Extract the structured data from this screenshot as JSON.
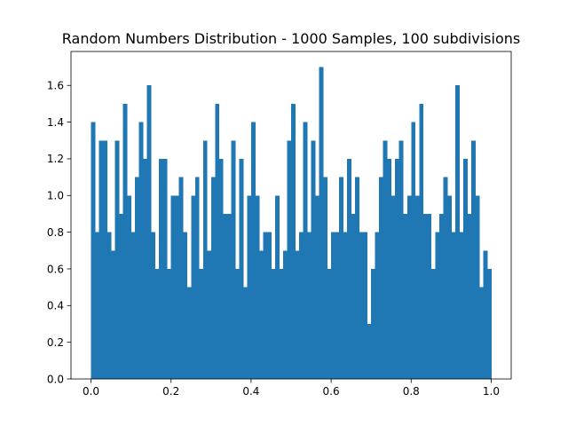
{
  "chart_data": {
    "type": "bar",
    "title": "Random Numbers Distribution - 1000 Samples, 100 subdivisions",
    "xlabel": "",
    "ylabel": "",
    "bin_range": [
      0,
      1
    ],
    "bin_count": 100,
    "xlim": [
      -0.05,
      1.05
    ],
    "ylim": [
      0,
      1.785
    ],
    "x_ticks": [
      0.0,
      0.2,
      0.4,
      0.6,
      0.8,
      1.0
    ],
    "x_tick_labels": [
      "0.0",
      "0.2",
      "0.4",
      "0.6",
      "0.8",
      "1.0"
    ],
    "y_ticks": [
      0.0,
      0.2,
      0.4,
      0.6,
      0.8,
      1.0,
      1.2,
      1.4,
      1.6
    ],
    "y_tick_labels": [
      "0.0",
      "0.2",
      "0.4",
      "0.6",
      "0.8",
      "1.0",
      "1.2",
      "1.4",
      "1.6"
    ],
    "bar_color": "#1f77b4",
    "grid": false,
    "values": [
      1.4,
      0.8,
      1.3,
      1.3,
      0.8,
      0.7,
      1.3,
      0.9,
      1.5,
      1.0,
      0.8,
      1.1,
      1.4,
      1.2,
      1.6,
      0.8,
      0.6,
      1.2,
      1.2,
      0.6,
      1.0,
      1.0,
      1.1,
      0.8,
      0.5,
      1.0,
      1.1,
      0.6,
      1.3,
      0.7,
      1.1,
      1.5,
      1.2,
      0.9,
      0.9,
      1.3,
      0.6,
      1.2,
      0.5,
      1.0,
      1.4,
      1.0,
      0.7,
      0.8,
      0.8,
      0.6,
      1.0,
      0.6,
      0.7,
      1.3,
      1.5,
      0.7,
      0.8,
      1.4,
      0.8,
      1.3,
      1.0,
      1.7,
      1.1,
      0.6,
      0.8,
      0.8,
      1.1,
      0.8,
      1.2,
      0.9,
      1.1,
      0.8,
      0.8,
      0.3,
      0.6,
      0.8,
      1.1,
      1.3,
      1.2,
      1.0,
      1.2,
      1.3,
      0.9,
      1.0,
      1.4,
      1.0,
      1.5,
      0.9,
      0.9,
      0.6,
      0.8,
      0.9,
      1.1,
      1.0,
      0.8,
      1.6,
      0.8,
      1.2,
      0.9,
      1.3,
      1.0,
      0.5,
      0.7,
      0.6
    ]
  }
}
